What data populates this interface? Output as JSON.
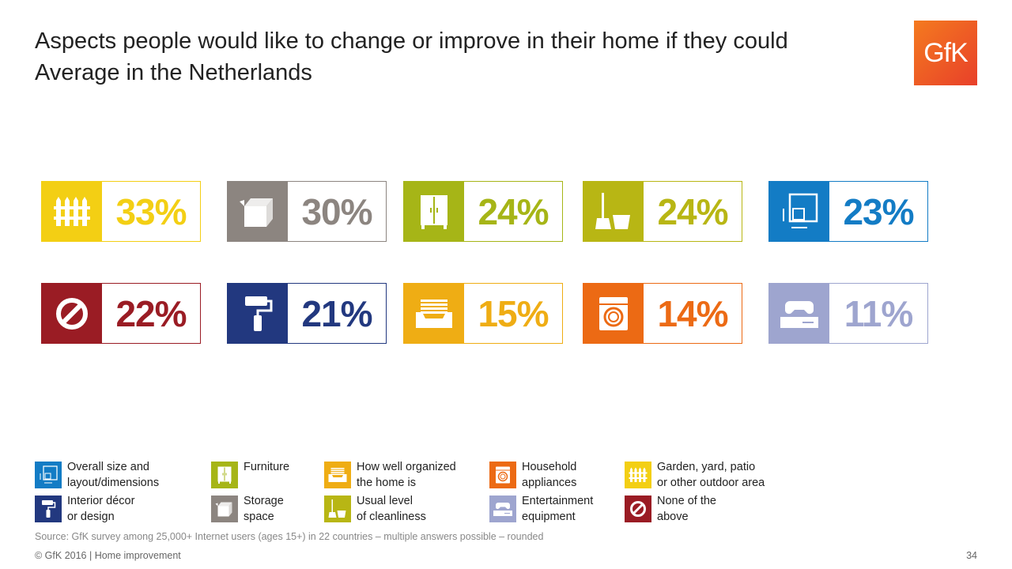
{
  "title": {
    "line1": "Aspects people would like to change or improve in their home if they could",
    "line2": "Average in the Netherlands"
  },
  "logo": "GfK",
  "chart_data": {
    "type": "bar",
    "categories": [
      "Garden, yard, patio or other outdoor area",
      "Storage space",
      "Furniture",
      "Usual level of cleanliness",
      "Overall size and layout/dimensions",
      "None of the above",
      "Interior décor or design",
      "How well organized the home is",
      "Household appliances",
      "Entertainment equipment"
    ],
    "values": [
      33,
      30,
      24,
      24,
      23,
      22,
      21,
      15,
      14,
      11
    ],
    "unit": "%"
  },
  "tiles": [
    {
      "label": "33%",
      "color": "#f3cf14",
      "icon": "fence-icon"
    },
    {
      "label": "30%",
      "color": "#8c8580",
      "icon": "box-icon"
    },
    {
      "label": "24%",
      "color": "#a6b517",
      "icon": "wardrobe-icon"
    },
    {
      "label": "24%",
      "color": "#b8b614",
      "icon": "broom-bucket-icon"
    },
    {
      "label": "23%",
      "color": "#137cc5",
      "icon": "floor-plan-icon"
    },
    {
      "label": "22%",
      "color": "#9a1c24",
      "icon": "prohibited-icon"
    },
    {
      "label": "21%",
      "color": "#22387f",
      "icon": "paint-roller-icon"
    },
    {
      "label": "15%",
      "color": "#efad14",
      "icon": "drawer-icon"
    },
    {
      "label": "14%",
      "color": "#ec6a14",
      "icon": "washing-machine-icon"
    },
    {
      "label": "11%",
      "color": "#9ea5cf",
      "icon": "game-console-icon"
    }
  ],
  "legend": [
    {
      "line1": "Overall size and",
      "line2": "layout/dimensions",
      "color": "#137cc5",
      "icon": "floor-plan-icon"
    },
    {
      "line1": "Furniture",
      "line2": "",
      "color": "#a6b517",
      "icon": "wardrobe-icon"
    },
    {
      "line1": "How well organized",
      "line2": "the home is",
      "color": "#efad14",
      "icon": "drawer-icon"
    },
    {
      "line1": "Household",
      "line2": "appliances",
      "color": "#ec6a14",
      "icon": "washing-machine-icon"
    },
    {
      "line1": "Garden, yard, patio",
      "line2": "or other outdoor area",
      "color": "#f3cf14",
      "icon": "fence-icon"
    },
    {
      "line1": "Interior décor",
      "line2": "or design",
      "color": "#22387f",
      "icon": "paint-roller-icon"
    },
    {
      "line1": "Storage",
      "line2": "space",
      "color": "#8c8580",
      "icon": "box-icon"
    },
    {
      "line1": "Usual level",
      "line2": "of cleanliness",
      "color": "#b8b614",
      "icon": "broom-bucket-icon"
    },
    {
      "line1": "Entertainment",
      "line2": "equipment",
      "color": "#9ea5cf",
      "icon": "game-console-icon"
    },
    {
      "line1": "None of the",
      "line2": "above",
      "color": "#9a1c24",
      "icon": "prohibited-icon"
    }
  ],
  "source": "Source: GfK survey among 25,000+ Internet users (ages 15+) in 22 countries – multiple answers possible – rounded",
  "footer": "© GfK 2016 | Home improvement",
  "page_number": "34"
}
